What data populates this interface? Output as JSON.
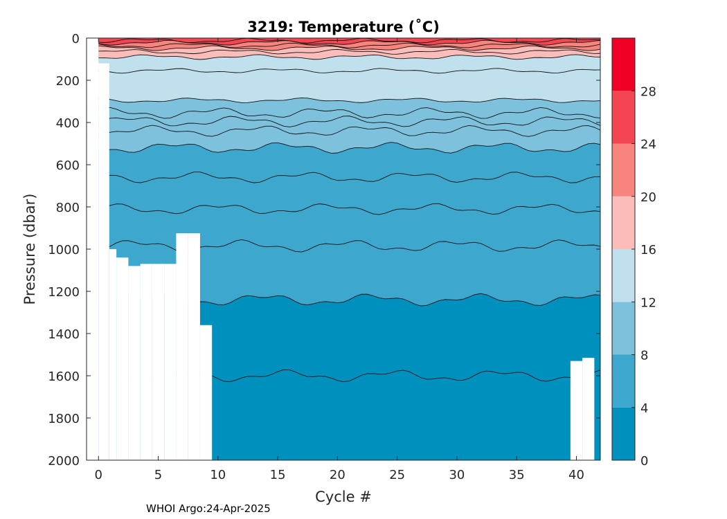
{
  "chart_data": {
    "type": "heatmap",
    "title": "3219:  Temperature (˚C)",
    "xlabel": "Cycle #",
    "ylabel": "Pressure (dbar)",
    "xlim": [
      -1,
      42
    ],
    "ylim": [
      0,
      2000
    ],
    "y_reversed": true,
    "x_ticks": [
      "0",
      "5",
      "10",
      "15",
      "20",
      "25",
      "30",
      "35",
      "40"
    ],
    "y_ticks": [
      "0",
      "200",
      "400",
      "600",
      "800",
      "1000",
      "1200",
      "1400",
      "1600",
      "1800",
      "2000"
    ],
    "colorbar": {
      "range": [
        0,
        32
      ],
      "tick_labels": [
        "0",
        "4",
        "8",
        "12",
        "16",
        "20",
        "24",
        "28"
      ],
      "bands": [
        {
          "from": 0,
          "to": 4,
          "color": "#0090bd"
        },
        {
          "from": 4,
          "to": 8,
          "color": "#3ea7cd"
        },
        {
          "from": 8,
          "to": 12,
          "color": "#7dc1dc"
        },
        {
          "from": 12,
          "to": 16,
          "color": "#bfe0ec"
        },
        {
          "from": 16,
          "to": 20,
          "color": "#fbbdba"
        },
        {
          "from": 20,
          "to": 24,
          "color": "#f7857e"
        },
        {
          "from": 24,
          "to": 28,
          "color": "#f44552"
        },
        {
          "from": 28,
          "to": 32,
          "color": "#f10026"
        }
      ]
    },
    "contour_depths_dbar": [
      {
        "level": "2",
        "depth": 1600
      },
      {
        "level": "4",
        "depth": 1240
      },
      {
        "level": "5",
        "depth": 985
      },
      {
        "level": "6",
        "depth": 810
      },
      {
        "level": "7",
        "depth": 660
      },
      {
        "level": "8",
        "depth": 520
      },
      {
        "level": "9",
        "depth": 440
      },
      {
        "level": "10",
        "depth": 395
      },
      {
        "level": "11",
        "depth": 355
      },
      {
        "level": "12",
        "depth": 295
      },
      {
        "level": "14",
        "depth": 155
      },
      {
        "level": "16",
        "depth": 90
      },
      {
        "level": "18",
        "depth": 65
      },
      {
        "level": "20",
        "depth": 48
      },
      {
        "level": "22",
        "depth": 35
      },
      {
        "level": "24",
        "depth": 22
      },
      {
        "level": "26",
        "depth": 12
      }
    ],
    "profile_max_pressure_dbar": [
      {
        "cycle": 1,
        "max_pressure": 1000
      },
      {
        "cycle": 2,
        "max_pressure": 1040
      },
      {
        "cycle": 3,
        "max_pressure": 1080
      },
      {
        "cycle": 4,
        "max_pressure": 1070
      },
      {
        "cycle": 5,
        "max_pressure": 1070
      },
      {
        "cycle": 6,
        "max_pressure": 1070
      },
      {
        "cycle": 7,
        "max_pressure": 925
      },
      {
        "cycle": 8,
        "max_pressure": 925
      },
      {
        "cycle": 9,
        "max_pressure": 1360
      },
      {
        "cycle": 10,
        "max_pressure": 2000
      },
      {
        "cycle": 40,
        "max_pressure": 1530
      },
      {
        "cycle": 41,
        "max_pressure": 1515
      }
    ],
    "grid": false
  },
  "footer": {
    "credit": "WHOI Argo:24-Apr-2025"
  }
}
